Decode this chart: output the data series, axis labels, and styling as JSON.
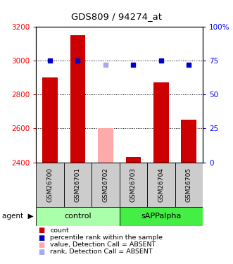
{
  "title": "GDS809 / 94274_at",
  "samples": [
    "GSM26700",
    "GSM26701",
    "GSM26702",
    "GSM26703",
    "GSM26704",
    "GSM26705"
  ],
  "bar_values": [
    2900,
    3150,
    2600,
    2430,
    2870,
    2650
  ],
  "bar_absent": [
    false,
    false,
    true,
    false,
    false,
    false
  ],
  "rank_values": [
    75,
    75,
    72,
    72,
    75,
    72
  ],
  "rank_absent": [
    false,
    false,
    true,
    false,
    false,
    false
  ],
  "ylim_left": [
    2400,
    3200
  ],
  "ylim_right": [
    0,
    100
  ],
  "yticks_left": [
    2400,
    2600,
    2800,
    3000,
    3200
  ],
  "yticks_right": [
    0,
    25,
    50,
    75,
    100
  ],
  "bar_color_present": "#cc0000",
  "bar_color_absent": "#ffaaaa",
  "rank_color_present": "#0000cc",
  "rank_color_absent": "#aaaaee",
  "group_colors": {
    "control": "#aaffaa",
    "sAPPalpha": "#44ee44"
  },
  "legend_items": [
    {
      "label": "count",
      "color": "#cc0000"
    },
    {
      "label": "percentile rank within the sample",
      "color": "#0000cc"
    },
    {
      "label": "value, Detection Call = ABSENT",
      "color": "#ffaaaa"
    },
    {
      "label": "rank, Detection Call = ABSENT",
      "color": "#aaaaee"
    }
  ]
}
